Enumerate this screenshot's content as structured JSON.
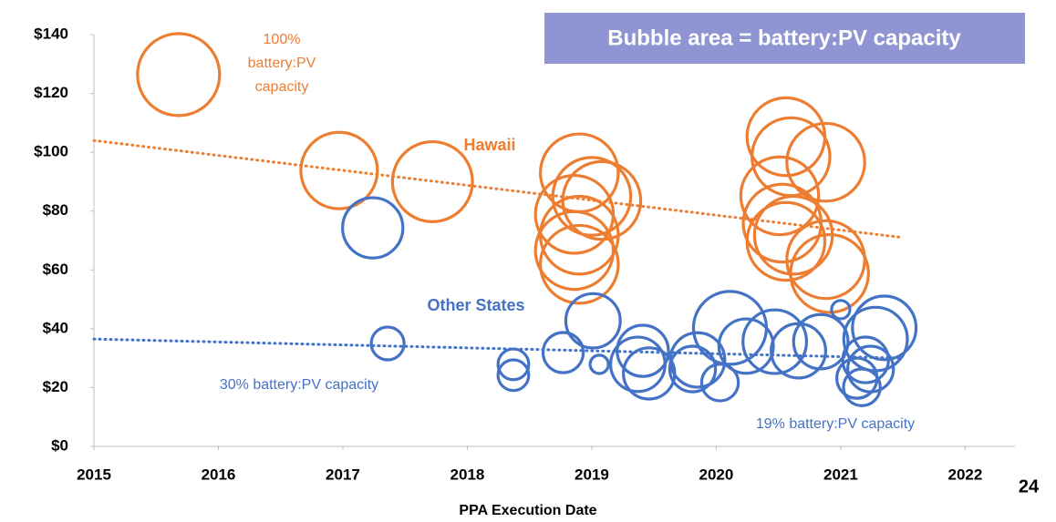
{
  "chart_data": {
    "type": "bubble",
    "title": "Bubble area = battery:PV capacity",
    "x_label": "PPA Execution Date",
    "page_number": "24",
    "xlim": [
      2015,
      2022.4
    ],
    "xticks": [
      2015,
      2016,
      2017,
      2018,
      2019,
      2020,
      2021,
      2022
    ],
    "ylim": [
      0,
      140
    ],
    "yticks": [
      {
        "value": 0,
        "label": "$0"
      },
      {
        "value": 20,
        "label": "$20"
      },
      {
        "value": 40,
        "label": "$40"
      },
      {
        "value": 60,
        "label": "$60"
      },
      {
        "value": 80,
        "label": "$80"
      },
      {
        "value": 100,
        "label": "$100"
      },
      {
        "value": 120,
        "label": "$120"
      },
      {
        "value": 140,
        "label": "$140"
      }
    ],
    "series": [
      {
        "name": "Hawaii",
        "color": "#ed7d31",
        "x": [
          2015.68,
          2016.97,
          2017.72,
          2018.9,
          2019.0,
          2018.86,
          2018.9,
          2018.86,
          2018.9,
          2019.08,
          2020.56,
          2020.6,
          2020.51,
          2020.53,
          2020.56,
          2020.62,
          2020.88,
          2020.88,
          2020.91
        ],
        "y": [
          126.4,
          93.8,
          90,
          93,
          85,
          78.9,
          71.8,
          66.6,
          61.9,
          83.6,
          105.3,
          98.5,
          85.2,
          75.9,
          69.7,
          71.8,
          96.6,
          63.5,
          58.8
        ],
        "size": [
          100,
          87,
          95,
          90,
          90,
          90,
          90,
          90,
          90,
          90,
          90,
          90,
          90,
          90,
          90,
          90,
          90,
          90,
          90
        ]
      },
      {
        "name": "Other States",
        "color": "#4472c4",
        "x": [
          2017.24,
          2017.36,
          2018.37,
          2018.37,
          2018.77,
          2019.01,
          2019.06,
          2019.41,
          2019.37,
          2019.46,
          2019.81,
          2019.85,
          2020.03,
          2020.11,
          2020.24,
          2020.47,
          2020.66,
          2020.84,
          2021.0,
          2021.13,
          2021.17,
          2021.2,
          2021.28,
          2021.35,
          2021.24
        ],
        "y": [
          74.3,
          35,
          27.9,
          24.2,
          31.9,
          42.7,
          27.9,
          32.5,
          27.9,
          24.8,
          26.3,
          29.4,
          21.7,
          40.3,
          34.1,
          35.6,
          32.5,
          35.6,
          46.5,
          23.2,
          20.1,
          29.4,
          36.5,
          40.3,
          26.3
        ],
        "size": [
          54,
          16,
          14,
          14,
          24,
          44,
          5,
          39,
          44,
          39,
          31,
          44,
          20,
          79,
          44,
          60,
          44,
          44,
          5,
          24,
          20,
          31,
          60,
          60,
          31
        ]
      }
    ],
    "trendlines": [
      {
        "color": "#ed7d31",
        "x": [
          2015,
          2021.5
        ],
        "y": [
          104,
          71
        ]
      },
      {
        "color": "#4472c4",
        "x": [
          2015,
          2021.5
        ],
        "y": [
          36.5,
          30
        ]
      }
    ],
    "annotations": [
      {
        "lines": [
          "100%",
          "battery:PV",
          "capacity"
        ],
        "color": "#ed7d31"
      },
      {
        "lines": [
          "Hawaii"
        ],
        "color": "#ed7d31"
      },
      {
        "lines": [
          "Other States"
        ],
        "color": "#4472c4"
      },
      {
        "lines": [
          "30% battery:PV capacity"
        ],
        "color": "#4472c4"
      },
      {
        "lines": [
          "19% battery:PV capacity"
        ],
        "color": "#4472c4"
      }
    ]
  }
}
